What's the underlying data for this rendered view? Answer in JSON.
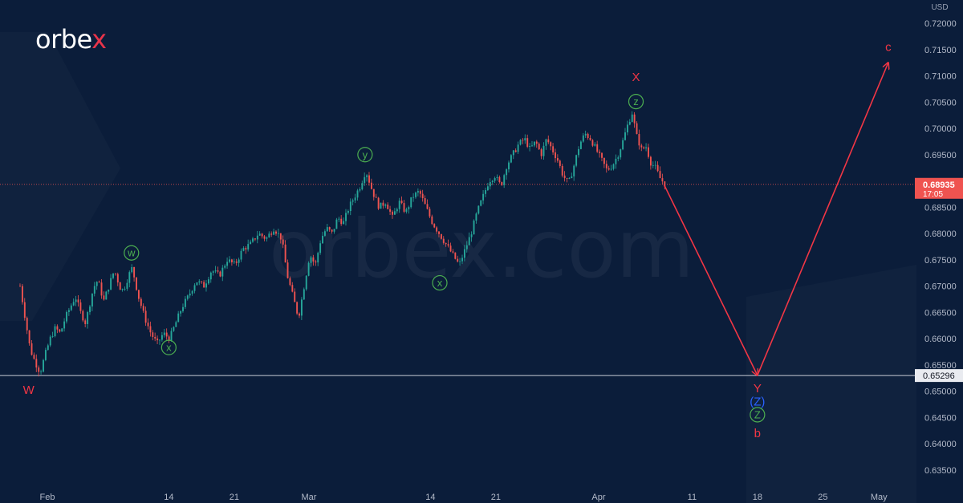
{
  "brand": {
    "logo_prefix": "orbe",
    "logo_x": "x",
    "watermark": "orbex.com"
  },
  "colors": {
    "background": "#0b1d3a",
    "candle_up": "#26a69a",
    "candle_down": "#ef5350",
    "projection": "#f23645",
    "green_label": "#4caf50",
    "blue_label": "#2962ff",
    "red_label": "#f23645"
  },
  "chart_data": {
    "type": "candlestick",
    "instrument_currency": "USD",
    "ylim": [
      0.632,
      0.7225
    ],
    "y_ticks": [
      "0.72000",
      "0.71500",
      "0.71000",
      "0.70500",
      "0.70000",
      "0.69500",
      "0.69000",
      "0.68500",
      "0.68000",
      "0.67500",
      "0.67000",
      "0.66500",
      "0.66000",
      "0.65500",
      "0.65000",
      "0.64500",
      "0.64000",
      "0.63500"
    ],
    "x_ticks": [
      "Feb",
      "14",
      "21",
      "Mar",
      "14",
      "21",
      "Apr",
      "11",
      "18",
      "25",
      "May"
    ],
    "current_price": {
      "value": "0.68935",
      "countdown": "17:05"
    },
    "support_level": {
      "value": "0.65296"
    },
    "price_path": [
      [
        0.67,
        0.664,
        0.658,
        0.6555,
        0.6535,
        0.657,
        0.66,
        0.662,
        0.661,
        0.664,
        0.666,
        0.668,
        0.665,
        0.663
      ],
      [
        0.663,
        0.666,
        0.669,
        0.671,
        0.67,
        0.667,
        0.669,
        0.671,
        0.673,
        0.671,
        0.669,
        0.67,
        0.672,
        0.6735
      ],
      [
        0.6735,
        0.668,
        0.664,
        0.661,
        0.659,
        0.661,
        0.66,
        0.663,
        0.666,
        0.668
      ],
      [
        0.668,
        0.671,
        0.67,
        0.673,
        0.672,
        0.675,
        0.674,
        0.677,
        0.678,
        0.68,
        0.679,
        0.681,
        0.679
      ],
      [
        0.679,
        0.672,
        0.668,
        0.664,
        0.67,
        0.676,
        0.674,
        0.679,
        0.681,
        0.68,
        0.683,
        0.682,
        0.685,
        0.687,
        0.689,
        0.692
      ],
      [
        0.692,
        0.688,
        0.685,
        0.686,
        0.683,
        0.686,
        0.684,
        0.687,
        0.688,
        0.685,
        0.682,
        0.68,
        0.678,
        0.676,
        0.674
      ],
      [
        0.674,
        0.677,
        0.68,
        0.684,
        0.687,
        0.69,
        0.691,
        0.689,
        0.693,
        0.695,
        0.697,
        0.698
      ],
      [
        0.698,
        0.696,
        0.6975,
        0.695,
        0.698,
        0.696,
        0.694,
        0.691,
        0.6895,
        0.693,
        0.697,
        0.699,
        0.698,
        0.696,
        0.694,
        0.692,
        0.693,
        0.695
      ],
      [
        0.695,
        0.6975,
        0.7005,
        0.703,
        0.6985,
        0.696,
        0.6965,
        0.6935,
        0.6925,
        0.6905,
        0.6894
      ]
    ],
    "projection_path": [
      {
        "time": "Apr 8",
        "price": 0.6893
      },
      {
        "time": "Apr 18",
        "price": 0.653
      },
      {
        "time": "May 2",
        "price": 0.7125
      }
    ],
    "wave_labels": [
      {
        "text": "w",
        "style": "circle-green",
        "time": "Feb 10",
        "price": 0.6763
      },
      {
        "text": "x",
        "style": "circle-green",
        "time": "Feb 14",
        "price": 0.6583
      },
      {
        "text": "y",
        "style": "circle-green",
        "time": "Mar 7",
        "price": 0.695
      },
      {
        "text": "x",
        "style": "circle-green",
        "time": "Mar 15",
        "price": 0.6706
      },
      {
        "text": "z",
        "style": "circle-green",
        "time": "Apr 5",
        "price": 0.7051
      },
      {
        "text": "W",
        "style": "plain-red",
        "time": "Jan 30",
        "price": 0.6502
      },
      {
        "text": "X",
        "style": "plain-red",
        "time": "Apr 5",
        "price": 0.7098
      },
      {
        "text": "Y",
        "style": "plain-red",
        "time": "Apr 18",
        "price": 0.6505
      },
      {
        "text": "(Z)",
        "style": "plain-blue",
        "time": "Apr 18",
        "price": 0.648
      },
      {
        "text": "Z",
        "style": "circle-green",
        "time": "Apr 18",
        "price": 0.6455
      },
      {
        "text": "b",
        "style": "plain-red",
        "time": "Apr 18",
        "price": 0.642
      },
      {
        "text": "c",
        "style": "plain-red",
        "time": "May 2",
        "price": 0.7155
      }
    ]
  }
}
